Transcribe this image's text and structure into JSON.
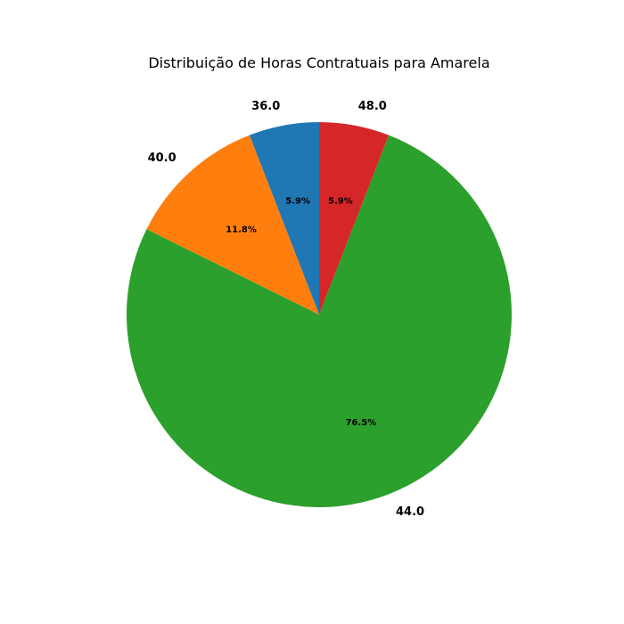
{
  "chart_data": {
    "type": "pie",
    "title": "Distribuição de Horas Contratuais para Amarela",
    "categories": [
      "36.0",
      "40.0",
      "44.0",
      "48.0"
    ],
    "values": [
      5.9,
      11.8,
      76.5,
      5.9
    ],
    "percent_labels": [
      "5.9%",
      "11.8%",
      "76.5%",
      "5.9%"
    ],
    "colors": [
      "#1f77b4",
      "#ff7f0e",
      "#2ca02c",
      "#d62728"
    ],
    "start_angle_deg": 90,
    "direction": "counterclockwise",
    "legend": "none"
  }
}
